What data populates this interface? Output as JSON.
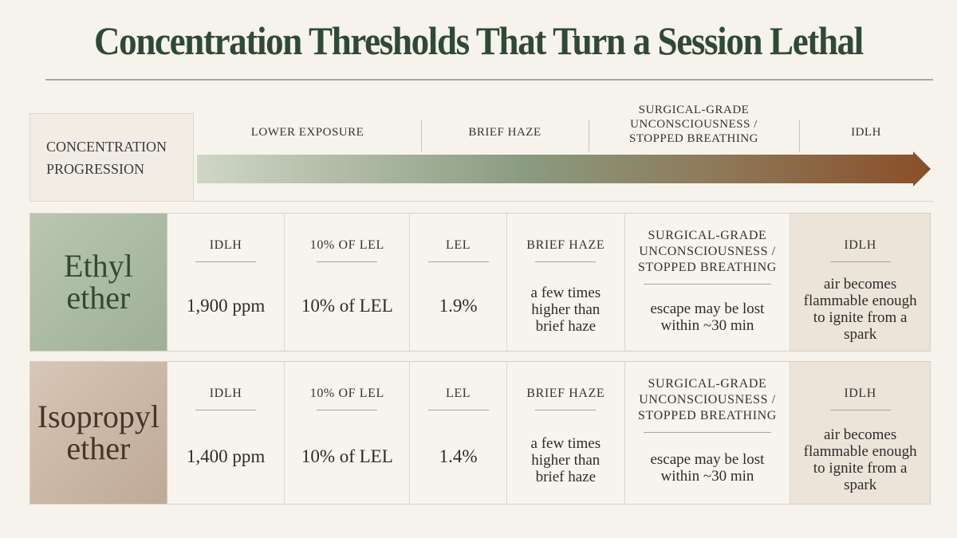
{
  "title": "Concentration Thresholds That Turn a Session Lethal",
  "progression": {
    "label": "CONCENTRATION PROGRESSION",
    "stages": [
      "LOWER EXPOSURE",
      "BRIEF HAZE",
      "SURGICAL-GRADE UNCONSCIOUSNESS / STOPPED BREATHING",
      "IDLH"
    ]
  },
  "rows": [
    {
      "name": "Ethyl ether",
      "cells": [
        {
          "heading": "IDLH",
          "text": "1,900 ppm"
        },
        {
          "heading": "10% OF LEL",
          "text": "10% of LEL"
        },
        {
          "heading": "LEL",
          "text": "1.9%"
        },
        {
          "heading": "BRIEF HAZE",
          "text": "a few times higher than brief haze"
        },
        {
          "heading": "SURGICAL-GRADE UNCONSCIOUSNESS / STOPPED BREATHING",
          "text": "escape may be lost within ~30 min"
        },
        {
          "heading": "IDLH",
          "text": "air becomes flammable enough to ignite from a spark"
        }
      ]
    },
    {
      "name": "Isopropyl ether",
      "cells": [
        {
          "heading": "IDLH",
          "text": "1,400 ppm"
        },
        {
          "heading": "10% OF LEL",
          "text": "10% of LEL"
        },
        {
          "heading": "LEL",
          "text": "1.4%"
        },
        {
          "heading": "BRIEF HAZE",
          "text": "a few times higher than brief haze"
        },
        {
          "heading": "SURGICAL-GRADE UNCONSCIOUSNESS / STOPPED BREATHING",
          "text": "escape may be lost within ~30 min"
        },
        {
          "heading": "IDLH",
          "text": "air becomes flammable enough to ignite from a spark"
        }
      ]
    }
  ]
}
